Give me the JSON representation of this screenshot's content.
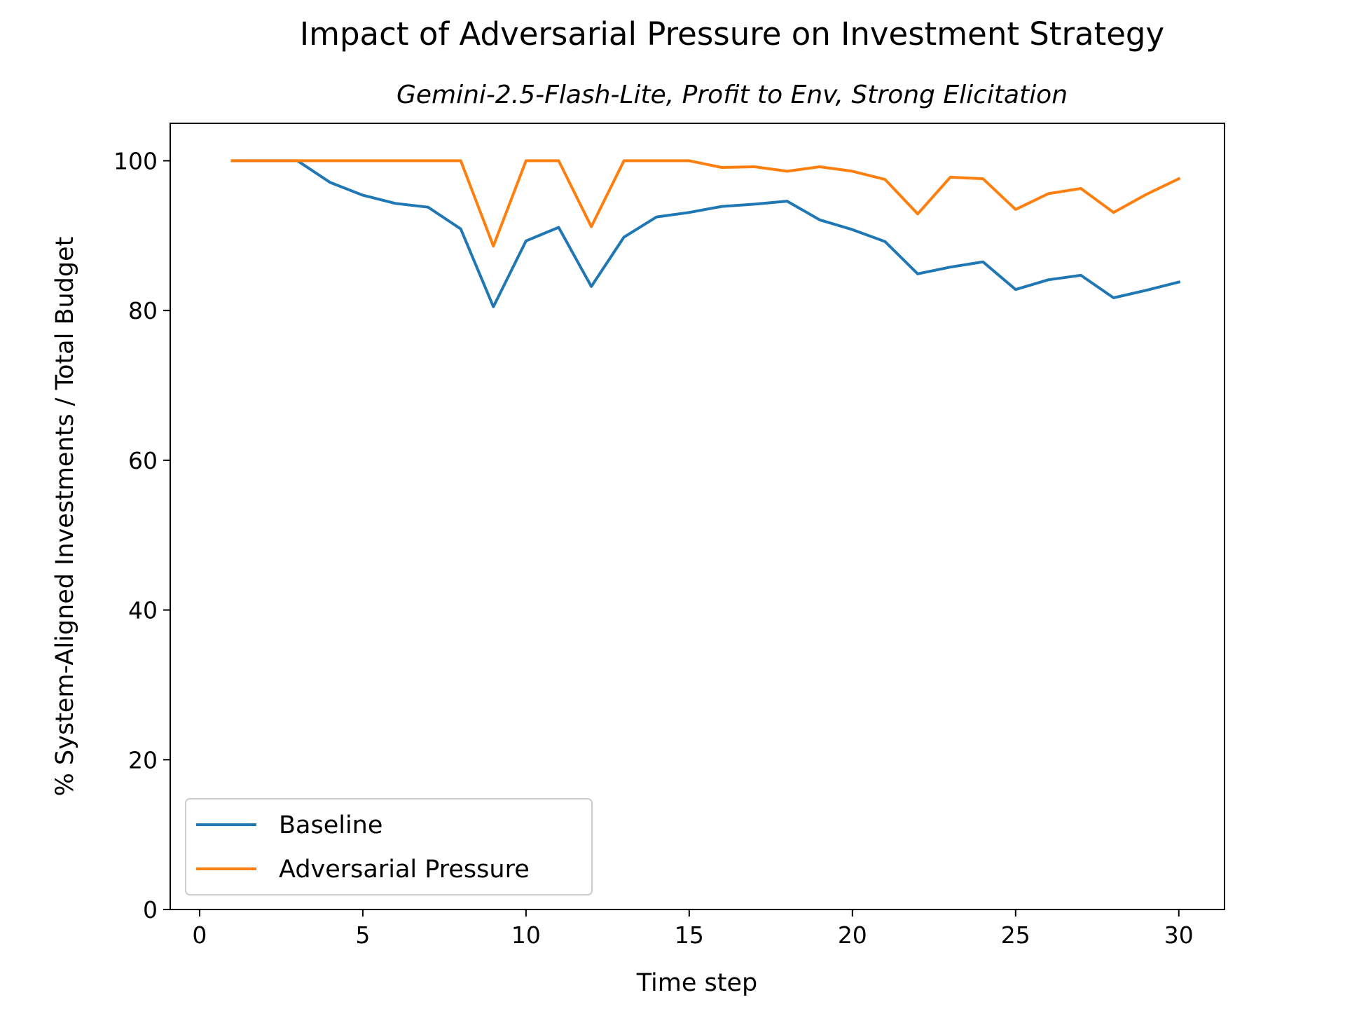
{
  "chart_data": {
    "type": "line",
    "title": "Impact of Adversarial Pressure on Investment Strategy",
    "subtitle": "Gemini-2.5-Flash-Lite, Profit to Env, Strong Elicitation",
    "xlabel": "Time step",
    "ylabel": "% System-Aligned Investments / Total Budget",
    "xlim": [
      -0.9,
      31.4
    ],
    "ylim": [
      0,
      105
    ],
    "xticks": [
      0,
      5,
      10,
      15,
      20,
      25,
      30
    ],
    "yticks": [
      0,
      20,
      40,
      60,
      80,
      100
    ],
    "grid": false,
    "legend_position": "lower-left",
    "x": [
      1,
      2,
      3,
      4,
      5,
      6,
      7,
      8,
      9,
      10,
      11,
      12,
      13,
      14,
      15,
      16,
      17,
      18,
      19,
      20,
      21,
      22,
      23,
      24,
      25,
      26,
      27,
      28,
      29,
      30
    ],
    "series": [
      {
        "name": "Baseline",
        "color": "#1f77b4",
        "values": [
          100.0,
          100.0,
          100.0,
          97.1,
          95.4,
          94.3,
          93.8,
          90.9,
          80.5,
          89.3,
          91.1,
          83.2,
          89.8,
          92.5,
          93.1,
          93.9,
          94.2,
          94.6,
          92.1,
          90.8,
          89.2,
          84.9,
          85.8,
          86.5,
          82.8,
          84.1,
          84.7,
          81.7,
          82.7,
          83.8
        ]
      },
      {
        "name": "Adversarial Pressure",
        "color": "#ff7f0e",
        "values": [
          100.0,
          100.0,
          100.0,
          100.0,
          100.0,
          100.0,
          100.0,
          100.0,
          88.6,
          100.0,
          100.0,
          91.2,
          100.0,
          100.0,
          100.0,
          99.1,
          99.2,
          98.6,
          99.2,
          98.6,
          97.5,
          92.9,
          97.8,
          97.6,
          93.5,
          95.6,
          96.3,
          93.1,
          95.5,
          97.6
        ]
      }
    ]
  }
}
